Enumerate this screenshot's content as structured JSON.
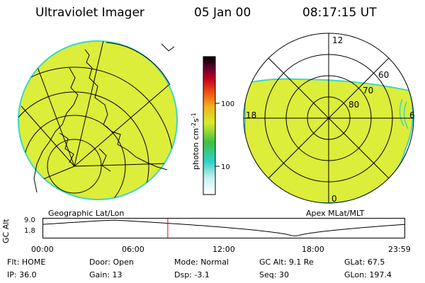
{
  "header": {
    "title": "Ultraviolet Imager",
    "date": "05 Jan 00",
    "time": "08:17:15 UT"
  },
  "colorbar": {
    "label": "photon cm",
    "label_exp1": "-2",
    "label_mid": "s",
    "label_exp2": "-1",
    "ticks": [
      "100",
      "10"
    ],
    "scale": "log"
  },
  "left_map": {
    "caption": "Geographic Lat/Lon"
  },
  "right_map": {
    "caption": "Apex MLat/MLT",
    "mlt_labels": [
      "12",
      "18",
      "6",
      "0"
    ],
    "mlat_labels": [
      "60",
      "70",
      "80"
    ]
  },
  "timeline": {
    "ylabel": "GC Alt",
    "yticks": [
      "9.0",
      "1.8"
    ],
    "xticks": [
      "00:00",
      "06:00",
      "12:00",
      "18:00",
      "23:59"
    ],
    "current_time_hours": 8.29,
    "marker_color": "#e00000"
  },
  "info": {
    "row1": [
      {
        "label": "Flt:",
        "value": "HOME"
      },
      {
        "label": "Door:",
        "value": "Open"
      },
      {
        "label": "Mode:",
        "value": "Normal"
      },
      {
        "label": "GC Alt:",
        "value": "9.1 Re"
      },
      {
        "label": "GLat:",
        "value": "67.5"
      }
    ],
    "row2": [
      {
        "label": "IP:",
        "value": "36.0"
      },
      {
        "label": "Gain:",
        "value": "13"
      },
      {
        "label": "Dsp:",
        "value": "-3.1"
      },
      {
        "label": "Seq:",
        "value": "30"
      },
      {
        "label": "GLon:",
        "value": "197.4"
      }
    ]
  },
  "colors": {
    "fill": "#dced3a",
    "edge": "#3fd6c4"
  }
}
